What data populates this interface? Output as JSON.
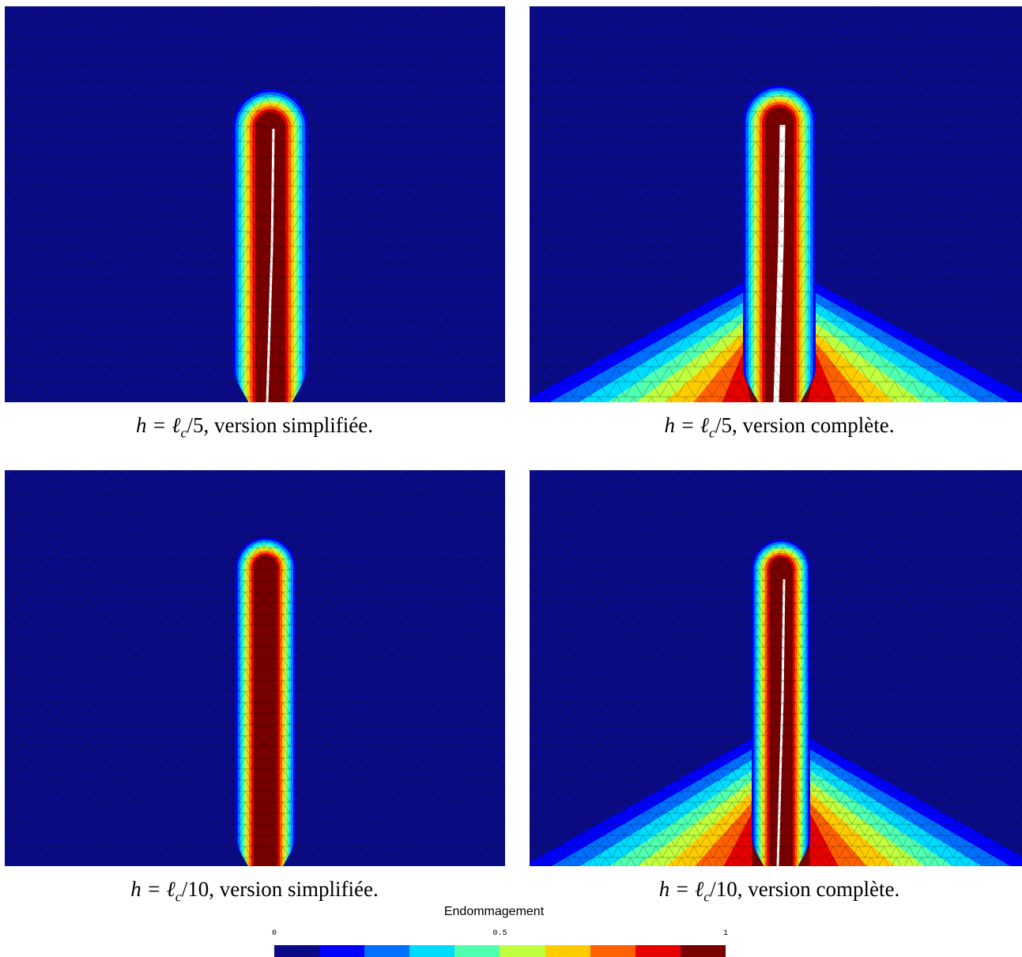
{
  "panels": [
    {
      "caption": {
        "lhs": "h = ℓ",
        "sub": "c",
        "rhs": "/5, version simplifiée."
      }
    },
    {
      "caption": {
        "lhs": "h = ℓ",
        "sub": "c",
        "rhs": "/5, version complète."
      }
    },
    {
      "caption": {
        "lhs": "h = ℓ",
        "sub": "c",
        "rhs": "/10, version simplifiée."
      }
    },
    {
      "caption": {
        "lhs": "h = ℓ",
        "sub": "c",
        "rhs": "/10, version complète."
      }
    }
  ],
  "colorbar": {
    "title": "Endommagement",
    "min": 0,
    "max": 1,
    "ticks": [
      0,
      0.5,
      1
    ],
    "colors": [
      "#0b0b88",
      "#0000ff",
      "#0070ff",
      "#00dcff",
      "#50ffb0",
      "#c0ff40",
      "#ffcc00",
      "#ff6000",
      "#e80000",
      "#7a0000"
    ]
  }
}
